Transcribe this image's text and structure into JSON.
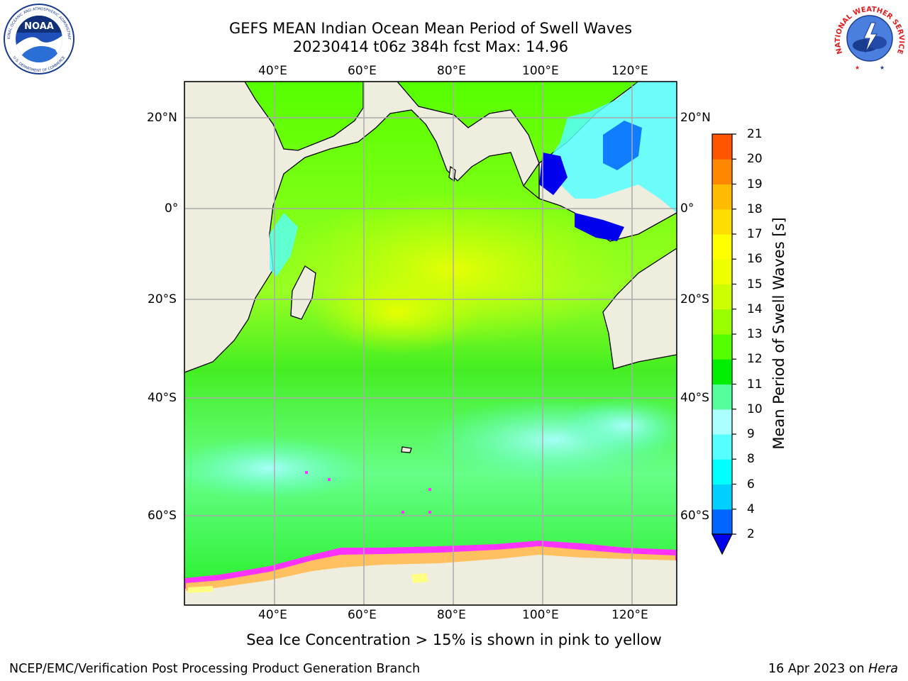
{
  "header": {
    "title_line1": "GEFS MEAN Indian Ocean Mean Period of Swell Waves",
    "title_line2": "20230414 t06z 384h fcst   Max: 14.96"
  },
  "logos": {
    "noaa_text": "NOAA",
    "noaa_ring_top": "NATIONAL OCEANIC AND ATMOSPHERIC ADMINISTRATION",
    "noaa_ring_bottom": "U.S. DEPARTMENT OF COMMERCE",
    "nws_ring": "NATIONAL WEATHER SERVICE"
  },
  "map": {
    "lon_ticks": [
      "40°E",
      "60°E",
      "80°E",
      "100°E",
      "120°E"
    ],
    "lat_ticks": [
      "20°N",
      "0°",
      "20°S",
      "40°S",
      "60°S"
    ],
    "colors": {
      "land": "#efedde",
      "ice_edge": "#ff33ff",
      "ice_mid": "#ffc060",
      "ice_low": "#ffff80"
    }
  },
  "colorbar": {
    "label": "Mean Period of Swell Waves [s]",
    "ticks": [
      "2",
      "4",
      "6",
      "8",
      "9",
      "10",
      "11",
      "12",
      "13",
      "14",
      "15",
      "16",
      "17",
      "18",
      "19",
      "20",
      "21"
    ],
    "colors": [
      "#0066ff",
      "#00d0ff",
      "#00ffff",
      "#55ffff",
      "#aaffff",
      "#55ff99",
      "#00ee00",
      "#55ff00",
      "#99ff00",
      "#ccff00",
      "#eeff00",
      "#ffff00",
      "#ffdd00",
      "#ffbb00",
      "#ff8800",
      "#ff5500",
      "#ff2200",
      "#ff0000"
    ],
    "under_color": "#0000ee"
  },
  "caption": "Sea Ice Concentration > 15% is shown in pink to yellow",
  "footer": {
    "left": "NCEP/EMC/Verification Post Processing Product Generation Branch",
    "date": "16 Apr 2023 on ",
    "machine": "Hera"
  }
}
